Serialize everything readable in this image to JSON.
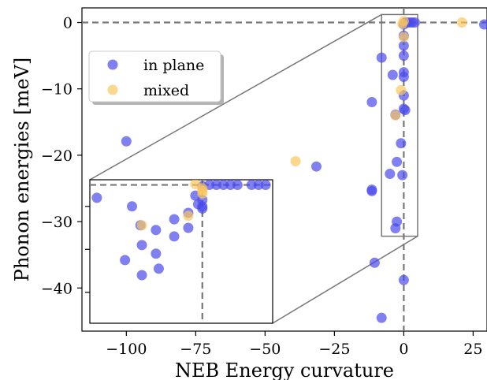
{
  "chart_data": {
    "type": "scatter",
    "xlabel": "NEB Energy curvature",
    "ylabel": "Phonon energies [meV]",
    "xlim": [
      -116,
      30
    ],
    "ylim": [
      -46.5,
      2.2
    ],
    "xticks": [
      -100,
      -75,
      -50,
      -25,
      0,
      25
    ],
    "xtick_labels": [
      "−100",
      "−75",
      "−50",
      "−25",
      "0",
      "25"
    ],
    "yticks": [
      0,
      -10,
      -20,
      -30,
      -40
    ],
    "ytick_labels": [
      "0",
      "−10",
      "−20",
      "−30",
      "−40"
    ],
    "grid": false,
    "legend_position": "upper-left",
    "reference_lines": {
      "x": 0,
      "y": 0,
      "style": "dashed",
      "color": "#777777"
    },
    "series": [
      {
        "name": "in plane",
        "color": "#4a4aeb",
        "points": [
          [
            -100,
            -17.9
          ],
          [
            -31.5,
            -21.7
          ],
          [
            -11.5,
            -12.0
          ],
          [
            -11.5,
            -25.2
          ],
          [
            -11.5,
            -25.4
          ],
          [
            -10.5,
            -36.2
          ],
          [
            -8.0,
            -44.5
          ],
          [
            -8.0,
            -5.3
          ],
          [
            -5.0,
            -22.8
          ],
          [
            -4.0,
            -7.9
          ],
          [
            -3.0,
            -13.9
          ],
          [
            -2.5,
            -30.0
          ],
          [
            -2.5,
            -21.0
          ],
          [
            -3.0,
            -31.0
          ],
          [
            -1.0,
            -18.2
          ],
          [
            -0.5,
            -23.0
          ],
          [
            0.0,
            -38.8
          ],
          [
            0.0,
            -2.0
          ],
          [
            0.0,
            -3.5
          ],
          [
            0.0,
            -5.0
          ],
          [
            0.0,
            -7.5
          ],
          [
            0.0,
            -8.2
          ],
          [
            0.0,
            -11.0
          ],
          [
            0.0,
            -13.0
          ],
          [
            0.5,
            -13.2
          ],
          [
            0.0,
            -0.3
          ],
          [
            0.5,
            0.0
          ],
          [
            1.0,
            0.0
          ],
          [
            2.0,
            0.0
          ],
          [
            3.0,
            0.0
          ],
          [
            4.0,
            0.0
          ],
          [
            29.0,
            -0.3
          ]
        ]
      },
      {
        "name": "mixed",
        "color": "#fbc760",
        "points": [
          [
            21.0,
            0.0
          ],
          [
            -39.0,
            -20.9
          ],
          [
            0.0,
            -2.2
          ],
          [
            -1.0,
            -10.2
          ],
          [
            -3.0,
            -14.0
          ],
          [
            -0.5,
            -0.2
          ],
          [
            0.0,
            0.2
          ]
        ]
      }
    ],
    "inset": {
      "xlim": [
        -8,
        5
      ],
      "ylim": [
        -32.2,
        1.2
      ],
      "indicated_region": true,
      "series": [
        {
          "name": "in plane",
          "points": [
            [
              -7.5,
              -3.0
            ],
            [
              -5.0,
              -5.0
            ],
            [
              -4.4,
              -9.4
            ],
            [
              -5.5,
              -17.5
            ],
            [
              -4.3,
              -14.0
            ],
            [
              -4.3,
              -21.0
            ],
            [
              -3.3,
              -10.5
            ],
            [
              -3.3,
              -16.0
            ],
            [
              -3.1,
              -19.5
            ],
            [
              -2.0,
              -8.0
            ],
            [
              -2.0,
              -12.0
            ],
            [
              -1.0,
              -6.5
            ],
            [
              -1.0,
              -10.0
            ],
            [
              -0.5,
              -2.5
            ],
            [
              -0.3,
              -4.5
            ],
            [
              0.0,
              -3.5
            ],
            [
              0.0,
              -5.0
            ],
            [
              0.0,
              -5.5
            ],
            [
              0.0,
              -0.3
            ],
            [
              0.5,
              0.0
            ],
            [
              1.0,
              0.0
            ],
            [
              1.5,
              0.0
            ],
            [
              2.0,
              0.0
            ],
            [
              2.5,
              0.0
            ],
            [
              3.5,
              0.0
            ],
            [
              4.0,
              0.0
            ],
            [
              4.5,
              0.0
            ]
          ]
        },
        {
          "name": "mixed",
          "points": [
            [
              0.0,
              -1.3
            ],
            [
              0.0,
              -0.8
            ],
            [
              0.0,
              -2.0
            ],
            [
              -1.0,
              -7.2
            ],
            [
              -4.3,
              -9.4
            ],
            [
              -0.5,
              0.2
            ]
          ]
        }
      ]
    }
  }
}
